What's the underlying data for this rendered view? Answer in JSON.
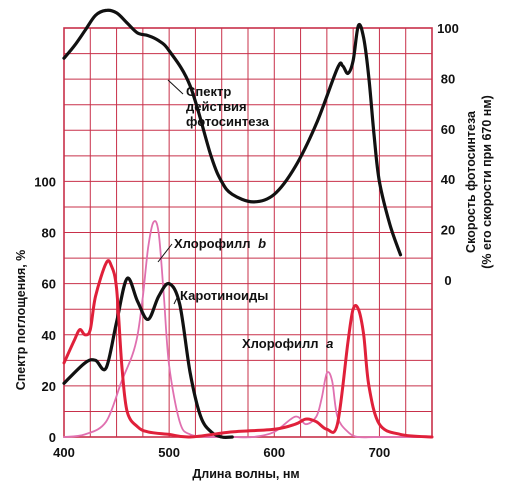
{
  "chart_data": {
    "type": "line",
    "xlabel": "Длина волны, нм",
    "ylabel_left": "Спектр поглощения, %",
    "ylabel_right_line1": "Скорость фотосинтеза",
    "ylabel_right_line2": "(% его скорости при 670 нм)",
    "x_ticks": [
      "400",
      "500",
      "600",
      "700"
    ],
    "y_left_ticks": [
      "0",
      "20",
      "40",
      "60",
      "80",
      "100"
    ],
    "y_right_ticks": [
      "0",
      "20",
      "40",
      "60",
      "80",
      "100"
    ],
    "xlim": [
      400,
      750
    ],
    "ylim_left": [
      0,
      160
    ],
    "ylim_right": [
      0,
      100
    ],
    "grid": true,
    "colors": {
      "grid": "#c8304a",
      "action": "#111111",
      "chl_a": "#e0203a",
      "chl_b": "#e070b0",
      "carot": "#111111"
    },
    "series": [
      {
        "name": "Спектр действия фотосинтеза",
        "axis": "right",
        "x": [
          400,
          410,
          420,
          430,
          440,
          450,
          460,
          470,
          480,
          490,
          500,
          520,
          540,
          550,
          560,
          580,
          600,
          620,
          640,
          660,
          665,
          670,
          675,
          680,
          685,
          690,
          695,
          700,
          710,
          720
        ],
        "values": [
          88,
          93,
          99,
          105,
          107,
          106,
          102,
          98,
          97,
          95,
          91,
          77,
          49,
          39,
          34,
          31,
          34,
          45,
          62,
          84,
          85,
          82,
          87,
          101,
          96,
          80,
          57,
          39,
          22,
          10
        ]
      },
      {
        "name": "Хлорофилл b",
        "axis": "left",
        "x": [
          400,
          420,
          440,
          455,
          465,
          470,
          475,
          480,
          485,
          490,
          495,
          500,
          510,
          520,
          540,
          560,
          580,
          600,
          620,
          630,
          640,
          645,
          650,
          655,
          660,
          670,
          680,
          700,
          750
        ],
        "values": [
          0,
          1,
          6,
          22,
          32,
          40,
          55,
          74,
          84,
          80,
          55,
          28,
          6,
          1,
          0,
          0,
          0,
          2,
          8,
          5,
          8,
          15,
          25,
          22,
          8,
          2,
          0,
          0,
          0
        ]
      },
      {
        "name": "Каротиноиды",
        "axis": "left",
        "x": [
          400,
          420,
          430,
          440,
          450,
          460,
          470,
          480,
          490,
          500,
          510,
          520,
          530,
          540,
          550,
          560
        ],
        "values": [
          21,
          29,
          30,
          27,
          45,
          62,
          53,
          46,
          55,
          60,
          52,
          25,
          8,
          2,
          0,
          0
        ]
      },
      {
        "name": "Хлорофилл a",
        "axis": "left",
        "x": [
          400,
          410,
          415,
          420,
          425,
          430,
          440,
          445,
          450,
          455,
          460,
          470,
          480,
          500,
          520,
          560,
          600,
          620,
          630,
          640,
          650,
          660,
          670,
          675,
          680,
          685,
          690,
          700,
          720,
          750
        ],
        "values": [
          29,
          38,
          42,
          40,
          42,
          55,
          68,
          67,
          58,
          28,
          10,
          4,
          2,
          1,
          0,
          2,
          3,
          5,
          7,
          6,
          3,
          5,
          37,
          50,
          50,
          40,
          20,
          5,
          1,
          0
        ]
      }
    ],
    "annotations": [
      {
        "lines": [
          "Спектр",
          "действия",
          "фотосинтеза"
        ]
      },
      {
        "text": "Хлорофилл",
        "suffix": "b"
      },
      {
        "text": "Каротиноиды"
      },
      {
        "text": "Хлорофилл",
        "suffix": "a"
      }
    ]
  }
}
